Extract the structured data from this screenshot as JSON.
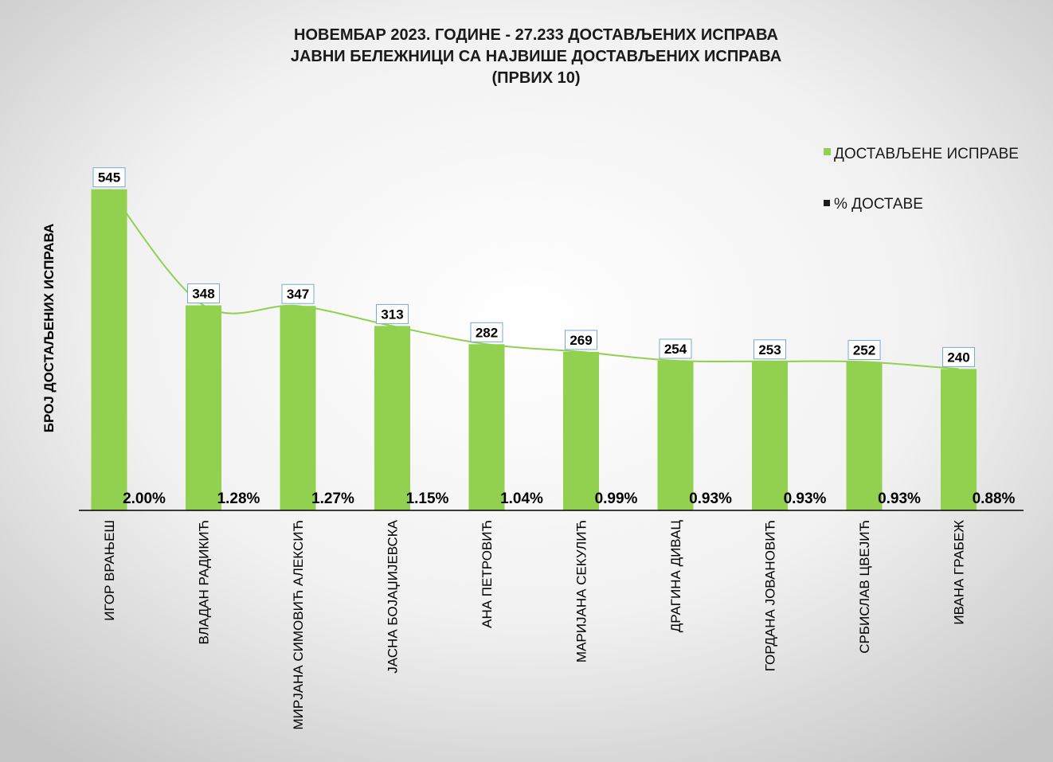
{
  "chart_data": {
    "type": "bar",
    "title_lines": [
      "НОВЕМБАР 2023. ГОДИНЕ - 27.233  ДОСТАВЉЕНИХ  ИСПРАВА",
      "ЈАВНИ БЕЛЕЖНИЦИ СА НАЈВИШЕ ДОСТАВЉЕНИХ  ИСПРАВА",
      "(ПРВИХ 10)"
    ],
    "ylabel": "БРОЈ ДОСТАЉЕНИХ ИСПРАВА",
    "categories": [
      "ИГОР ВРАЊЕШ",
      "ВЛАДАН РАДИКИЋ",
      "МИРЈАНА СИМОВИЋ АЛЕКСИЋ",
      "ЈАСНА БОЈАЏИЈЕВСКА",
      "АНА ПЕТРОВИЋ",
      "МАРИЈАНА СЕКУЛИЋ",
      "ДРАГИНА ДИВАЦ",
      "ГОРДАНА ЈОВАНОВИЋ",
      "СРБИСЛАВ ЦВЕЈИЋ",
      "ИВАНА ГРАБЕЖ"
    ],
    "series": [
      {
        "name": "ДОСТАВЉЕНЕ  ИСПРАВЕ",
        "color": "#92d050",
        "values": [
          545,
          348,
          347,
          313,
          282,
          269,
          254,
          253,
          252,
          240
        ],
        "labels": [
          "545",
          "348",
          "347",
          "313",
          "282",
          "269",
          "254",
          "253",
          "252",
          "240"
        ]
      },
      {
        "name": "% ДОСТАВЕ",
        "color": "#1a1a1a",
        "values": [
          2.0,
          1.28,
          1.27,
          1.15,
          1.04,
          0.99,
          0.93,
          0.93,
          0.93,
          0.88
        ],
        "labels": [
          "2.00%",
          "1.28%",
          "1.27%",
          "1.15%",
          "1.04%",
          "0.99%",
          "0.93%",
          "0.93%",
          "0.93%",
          "0.88%"
        ]
      }
    ],
    "ylim": [
      0,
      580
    ],
    "trendline": true,
    "grid": false,
    "legend_position": "top-right",
    "background_gradient": [
      "#ffffff",
      "#c8c8c8"
    ]
  }
}
